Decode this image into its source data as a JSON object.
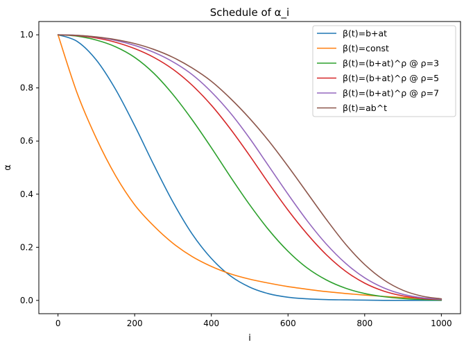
{
  "chart_data": {
    "type": "line",
    "title": "Schedule of α_i",
    "xlabel": "i",
    "ylabel": "α",
    "xlim": [
      -50,
      1050
    ],
    "ylim": [
      -0.05,
      1.05
    ],
    "xticks": [
      0,
      200,
      400,
      600,
      800,
      1000
    ],
    "yticks": [
      0.0,
      0.2,
      0.4,
      0.6,
      0.8,
      1.0
    ],
    "grid": false,
    "legend_position": "top-right",
    "x": [
      0,
      50,
      100,
      150,
      200,
      250,
      300,
      350,
      400,
      450,
      500,
      550,
      600,
      650,
      700,
      750,
      800,
      850,
      900,
      950,
      1000
    ],
    "series": [
      {
        "name": "β(t)=b+at",
        "color": "#1f77b4",
        "values": [
          1.0,
          0.975,
          0.905,
          0.795,
          0.658,
          0.51,
          0.37,
          0.25,
          0.158,
          0.092,
          0.05,
          0.025,
          0.012,
          0.006,
          0.003,
          0.002,
          0.001,
          0.0,
          0.0,
          0.0,
          0.0
        ]
      },
      {
        "name": "β(t)=const",
        "color": "#ff7f0e",
        "values": [
          1.0,
          0.78,
          0.61,
          0.47,
          0.36,
          0.28,
          0.215,
          0.165,
          0.128,
          0.1,
          0.08,
          0.065,
          0.052,
          0.042,
          0.033,
          0.026,
          0.02,
          0.015,
          0.011,
          0.008,
          0.005
        ]
      },
      {
        "name": "β(t)=(b+at)^ρ @ ρ=3",
        "color": "#2ca02c",
        "values": [
          1.0,
          0.995,
          0.98,
          0.955,
          0.915,
          0.855,
          0.775,
          0.68,
          0.575,
          0.465,
          0.36,
          0.265,
          0.185,
          0.122,
          0.077,
          0.046,
          0.026,
          0.014,
          0.007,
          0.003,
          0.001
        ]
      },
      {
        "name": "β(t)=(b+at)^ρ @ ρ=5",
        "color": "#d62728",
        "values": [
          1.0,
          0.997,
          0.988,
          0.972,
          0.948,
          0.915,
          0.87,
          0.81,
          0.735,
          0.645,
          0.545,
          0.44,
          0.34,
          0.25,
          0.172,
          0.11,
          0.065,
          0.035,
          0.017,
          0.007,
          0.003
        ]
      },
      {
        "name": "β(t)=(b+at)^ρ @ ρ=7",
        "color": "#9467bd",
        "values": [
          1.0,
          0.998,
          0.991,
          0.979,
          0.96,
          0.934,
          0.898,
          0.85,
          0.785,
          0.705,
          0.61,
          0.505,
          0.4,
          0.3,
          0.212,
          0.14,
          0.085,
          0.047,
          0.023,
          0.01,
          0.004
        ]
      },
      {
        "name": "β(t)=ab^t",
        "color": "#8c564b",
        "values": [
          1.0,
          0.998,
          0.992,
          0.982,
          0.967,
          0.945,
          0.915,
          0.875,
          0.825,
          0.76,
          0.685,
          0.6,
          0.505,
          0.405,
          0.305,
          0.212,
          0.135,
          0.077,
          0.038,
          0.016,
          0.006
        ]
      }
    ]
  }
}
